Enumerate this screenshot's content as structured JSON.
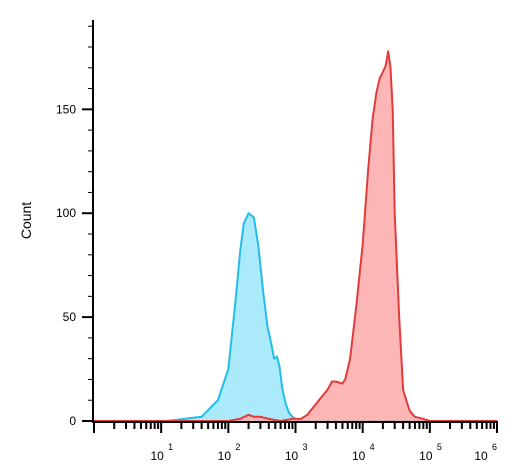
{
  "chart_data": {
    "type": "area",
    "title": "",
    "xlabel": "",
    "ylabel": "Count",
    "x_scale": "log",
    "xlim": [
      1,
      1000000
    ],
    "ylim": [
      0,
      193
    ],
    "y_ticks": [
      0,
      50,
      100,
      150
    ],
    "x_ticks": [
      {
        "base": "10",
        "exp": "1",
        "value": 10
      },
      {
        "base": "10",
        "exp": "2",
        "value": 100
      },
      {
        "base": "10",
        "exp": "3",
        "value": 1000
      },
      {
        "base": "10",
        "exp": "4",
        "value": 10000
      },
      {
        "base": "10",
        "exp": "5",
        "value": 100000
      },
      {
        "base": "10",
        "exp": "6",
        "value": 1000000
      }
    ],
    "grid": false,
    "legend": "none",
    "series": [
      {
        "color": "#22bde8",
        "fill": "#9be6fa",
        "x": [
          1,
          12,
          40,
          70,
          100,
          130,
          150,
          170,
          200,
          240,
          280,
          330,
          380,
          430,
          480,
          530,
          580,
          640,
          720,
          800,
          900,
          1000,
          1300,
          1500,
          1800,
          2500,
          5000,
          1000000
        ],
        "y": [
          0,
          0,
          2,
          10,
          25,
          60,
          82,
          95,
          100,
          98,
          84,
          62,
          46,
          38,
          30,
          31,
          26,
          15,
          8,
          4,
          2,
          1,
          0,
          0,
          0,
          0,
          0,
          0
        ]
      },
      {
        "color": "#e33b3b",
        "fill": "#fba9a9",
        "x": [
          1,
          50,
          100,
          150,
          200,
          240,
          300,
          400,
          600,
          900,
          1200,
          1500,
          2000,
          2500,
          3000,
          3500,
          4000,
          5000,
          5500,
          6500,
          8000,
          10000,
          12000,
          14000,
          16000,
          18000,
          20000,
          22000,
          24000,
          26000,
          28000,
          30000,
          35000,
          40000,
          50000,
          60000,
          80000,
          100000,
          200000,
          1000000
        ],
        "y": [
          0,
          0,
          0,
          1,
          3,
          2,
          2,
          1,
          0,
          1,
          1,
          3,
          8,
          12,
          15,
          19,
          19,
          18,
          20,
          30,
          55,
          85,
          120,
          145,
          158,
          165,
          168,
          171,
          178,
          170,
          150,
          100,
          50,
          15,
          5,
          2,
          1,
          0,
          0,
          0
        ]
      }
    ]
  }
}
